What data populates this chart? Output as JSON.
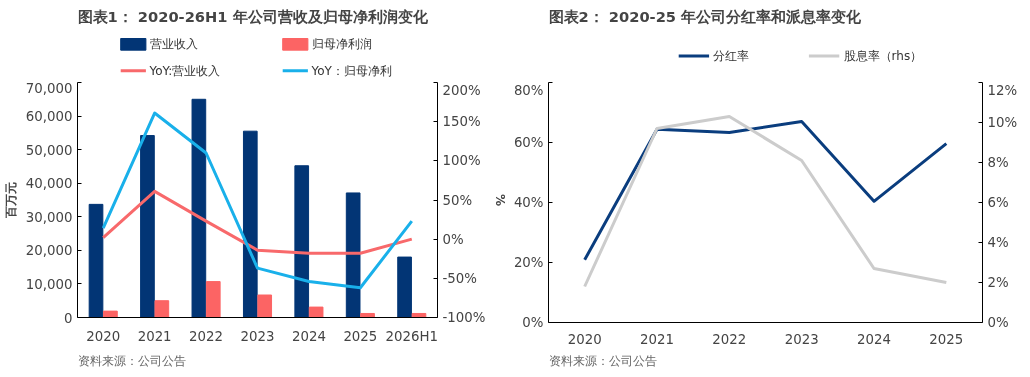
{
  "chart_data": [
    {
      "type": "bar",
      "title": "图表1： 2020-26H1 年公司营收及归母净利润变化",
      "ylabel": "百万元",
      "y2label": "%",
      "categories": [
        "2020",
        "2021",
        "2022",
        "2023",
        "2024",
        "2025",
        "2026H1"
      ],
      "series": [
        {
          "name": "营业收入",
          "type": "bar",
          "color": "#023575",
          "values": [
            33700,
            54200,
            65000,
            55500,
            45200,
            37100,
            18000
          ]
        },
        {
          "name": "归母净利润",
          "type": "bar",
          "color": "#fc6464",
          "values": [
            1900,
            5000,
            10700,
            6700,
            3100,
            1200,
            1200
          ]
        },
        {
          "name": "YoY:营业收入",
          "type": "line",
          "axis": "y2",
          "color": "#f8696b",
          "values": [
            2,
            61,
            23,
            -14,
            -18,
            -18,
            0
          ]
        },
        {
          "name": "YoY：归母净利",
          "type": "line",
          "axis": "y2",
          "color": "#19b0ea",
          "values": [
            14,
            161,
            110,
            -37,
            -54,
            -62,
            23
          ]
        }
      ],
      "ylim": [
        0,
        70000
      ],
      "yticks": [
        {
          "value": 0,
          "label": "0"
        },
        {
          "value": 10000,
          "label": "10,000"
        },
        {
          "value": 20000,
          "label": "20,000"
        },
        {
          "value": 30000,
          "label": "30,000"
        },
        {
          "value": 40000,
          "label": "40,000"
        },
        {
          "value": 50000,
          "label": "50,000"
        },
        {
          "value": 60000,
          "label": "60,000"
        },
        {
          "value": 70000,
          "label": "70,000"
        }
      ],
      "y2lim": [
        -100,
        200
      ],
      "y2ticks": [
        {
          "value": -100,
          "label": "-100%"
        },
        {
          "value": -50,
          "label": "-50%"
        },
        {
          "value": 0,
          "label": "0%"
        },
        {
          "value": 50,
          "label": "50%"
        },
        {
          "value": 100,
          "label": "100%"
        },
        {
          "value": 150,
          "label": "150%"
        },
        {
          "value": 200,
          "label": "200%"
        }
      ],
      "grid": false,
      "legend": "top",
      "line_style": "solid",
      "annotations": [
        "资料来源：公司公告"
      ]
    },
    {
      "type": "line",
      "title": "图表2： 2020-25 年公司分红率和派息率变化",
      "categories": [
        "2020",
        "2021",
        "2022",
        "2023",
        "2024",
        "2025"
      ],
      "series": [
        {
          "name": "分红率",
          "color": "#0a3d7e",
          "values": [
            20.9,
            64.4,
            63.3,
            67,
            40.4,
            59.6
          ]
        },
        {
          "name": "股息率（rhs）",
          "axis": "y2",
          "color": "#cccccc",
          "values": [
            1.8,
            9.7,
            10.3,
            8.1,
            2.7,
            2.0
          ]
        }
      ],
      "ylim": [
        0,
        80
      ],
      "yticks": [
        {
          "value": 0,
          "label": "0%"
        },
        {
          "value": 20,
          "label": "20%"
        },
        {
          "value": 40,
          "label": "40%"
        },
        {
          "value": 60,
          "label": "60%"
        },
        {
          "value": 80,
          "label": "80%"
        }
      ],
      "y2lim": [
        0,
        12
      ],
      "y2ticks": [
        {
          "value": 0,
          "label": "0%"
        },
        {
          "value": 2,
          "label": "2%"
        },
        {
          "value": 4,
          "label": "4%"
        },
        {
          "value": 6,
          "label": "6%"
        },
        {
          "value": 8,
          "label": "8%"
        },
        {
          "value": 10,
          "label": "10%"
        },
        {
          "value": 12,
          "label": "12%"
        }
      ],
      "grid": false,
      "legend": "top",
      "line_style": "solid",
      "annotations": [
        "资料来源：公司公告"
      ]
    }
  ]
}
